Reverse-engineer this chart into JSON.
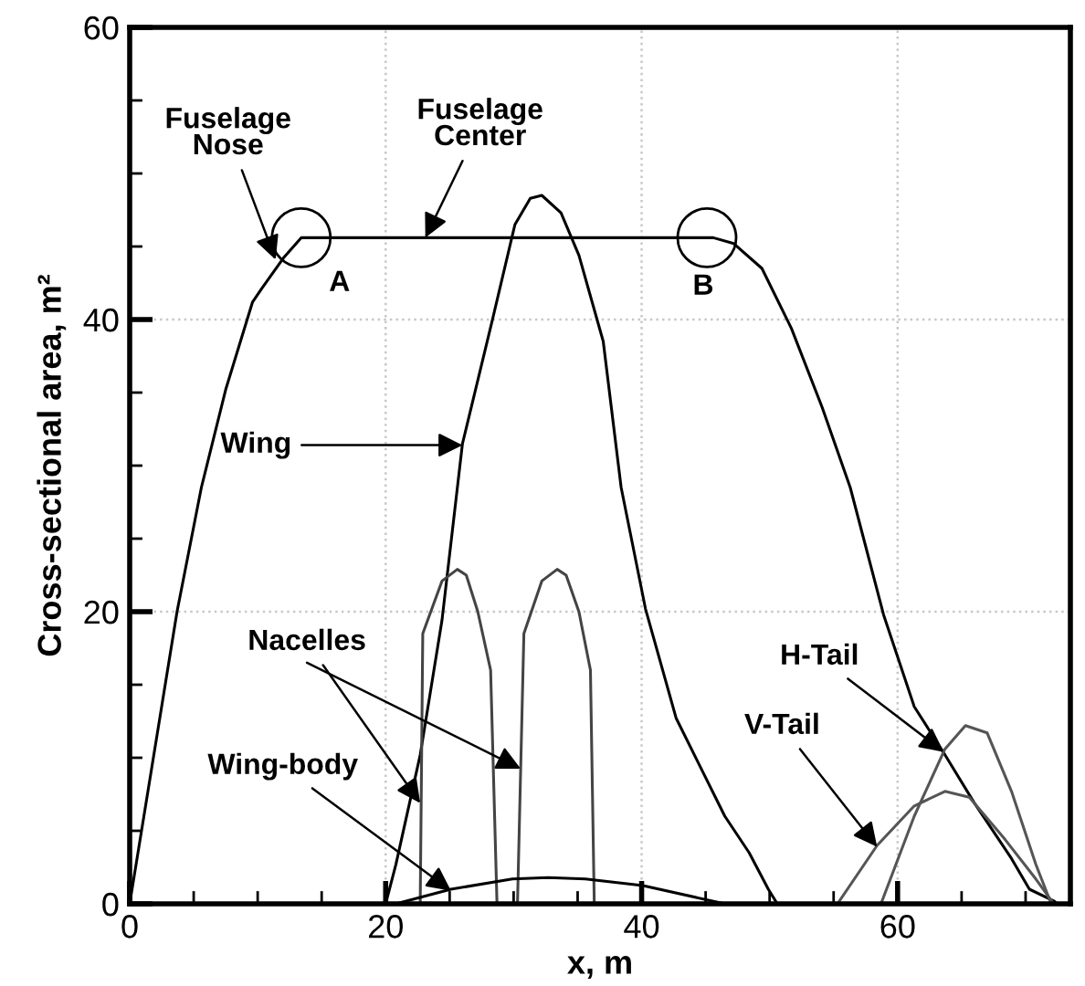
{
  "chart_data": {
    "type": "line",
    "xlabel": "x, m",
    "ylabel": "Cross-sectional area, m²",
    "xlim": [
      0,
      73.5
    ],
    "ylim": [
      0,
      60
    ],
    "xticks": [
      0,
      {
        "value": 5,
        "label": null
      },
      {
        "value": 10,
        "label": null
      },
      {
        "value": 15,
        "label": null
      },
      20,
      {
        "value": 25,
        "label": null
      },
      {
        "value": 30,
        "label": null
      },
      {
        "value": 35,
        "label": null
      },
      40,
      {
        "value": 45,
        "label": null
      },
      {
        "value": 50,
        "label": null
      },
      {
        "value": 55,
        "label": null
      },
      60,
      {
        "value": 65,
        "label": null
      },
      {
        "value": 70,
        "label": null
      }
    ],
    "yticks": [
      0,
      {
        "value": 5,
        "label": null
      },
      {
        "value": 10,
        "label": null
      },
      {
        "value": 15,
        "label": null
      },
      20,
      {
        "value": 25,
        "label": null
      },
      {
        "value": 30,
        "label": null
      },
      {
        "value": 35,
        "label": null
      },
      40,
      {
        "value": 45,
        "label": null
      },
      {
        "value": 50,
        "label": null
      },
      {
        "value": 55,
        "label": null
      },
      60
    ],
    "grid": true,
    "legend": false,
    "marker": "none",
    "line_style": "solid",
    "series": [
      {
        "color": "#000000",
        "x": [
          0,
          3.7,
          5.6,
          7.5,
          9.6,
          10.3,
          12,
          13.4,
          45.6,
          47.2,
          49.4,
          51.7,
          54.1,
          56.3,
          58.9,
          61.3,
          63.7,
          66,
          68.9,
          70.3,
          72.2,
          72.5
        ],
        "values": [
          0,
          20,
          28.5,
          35.2,
          41.2,
          42.1,
          44.2,
          45.6,
          45.6,
          45.2,
          43.5,
          39.4,
          34,
          28.5,
          19.8,
          13.5,
          10.2,
          6.9,
          3.1,
          1,
          0.2,
          0
        ]
      },
      {
        "color": "#000000",
        "x": [
          20,
          20.8,
          22.7,
          24.4,
          26,
          28.4,
          30.1,
          31.3,
          32.2,
          33.7,
          35.1,
          37,
          38.4,
          40.3,
          42.7,
          46.5,
          48.4,
          49.9,
          50.6
        ],
        "values": [
          0,
          2.7,
          10.2,
          19.4,
          31.5,
          40.2,
          46.5,
          48.3,
          48.5,
          47.3,
          44.4,
          38.5,
          28.5,
          20.2,
          12.7,
          6,
          3.5,
          1,
          0
        ]
      },
      {
        "color": "#444444",
        "x": [
          22.7,
          22.9,
          24.4,
          25.6,
          26.3,
          27.2,
          28.2,
          28.7
        ],
        "values": [
          0,
          18.5,
          22.1,
          22.9,
          22.5,
          20,
          16,
          0
        ]
      },
      {
        "color": "#444444",
        "x": [
          30.3,
          30.8,
          32.2,
          33.4,
          34.1,
          35.1,
          36,
          36.3
        ],
        "values": [
          0,
          18.5,
          22.1,
          22.9,
          22.5,
          20,
          16,
          0
        ]
      },
      {
        "color": "#000000",
        "x": [
          20.8,
          25.1,
          29.9,
          32.7,
          35.6,
          40.1,
          46.5
        ],
        "values": [
          0,
          1,
          1.7,
          1.8,
          1.7,
          1.25,
          0
        ]
      },
      {
        "color": "#555555",
        "x": [
          55.3,
          58.4,
          61.3,
          63.7,
          65.6,
          68.4,
          70.8,
          72.2
        ],
        "values": [
          0,
          4,
          6.7,
          7.7,
          7.3,
          4.4,
          1.7,
          0
        ]
      },
      {
        "color": "#555555",
        "x": [
          58.7,
          61.3,
          63.7,
          65.3,
          67,
          68.9,
          70.8,
          72
        ],
        "values": [
          0,
          6,
          10.6,
          12.2,
          11.7,
          7.7,
          2.7,
          0
        ]
      }
    ],
    "annotations": [
      {
        "text": "Fuselage\nNose",
        "x": 11.4,
        "y": 44.1
      },
      {
        "text": "Fuselage\nCenter",
        "x": 23.1,
        "y": 45.6
      },
      {
        "text": "Wing",
        "x": 26,
        "y": 31.4
      },
      {
        "text": "Nacelles",
        "x": 22.7,
        "y": 6.9
      },
      {
        "text": "Wing-body",
        "x": 25.1,
        "y": 0.9
      },
      {
        "text": "H-Tail",
        "x": 63.6,
        "y": 10.4
      },
      {
        "text": "V-Tail",
        "x": 58.4,
        "y": 3.9
      },
      {
        "text": "A",
        "x": 13.4,
        "y": 45.6
      },
      {
        "text": "B",
        "x": 45.1,
        "y": 45.6
      }
    ]
  }
}
